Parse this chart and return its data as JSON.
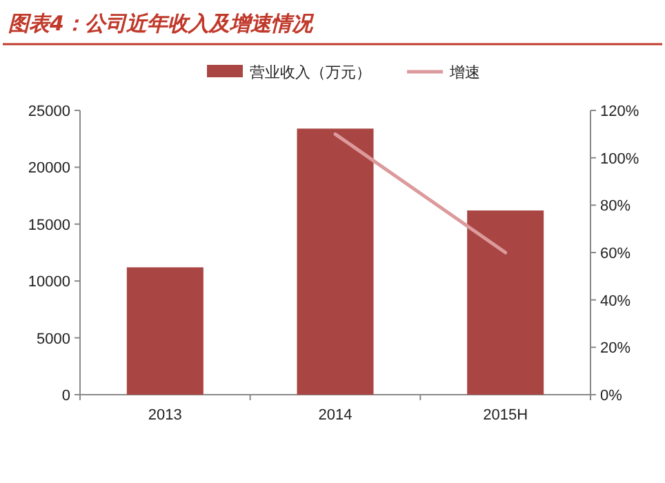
{
  "chart_data": {
    "type": "bar",
    "title": "图表4：公司近年收入及增速情况",
    "categories": [
      "2013",
      "2014",
      "2015H"
    ],
    "series": [
      {
        "name": "营业收入（万元）",
        "color": "#a94643",
        "values": [
          11200,
          23400,
          16200
        ]
      },
      {
        "name": "增速",
        "type": "line",
        "axis": "y2",
        "color": "#dc9a9c",
        "values": [
          null,
          110,
          60
        ]
      }
    ],
    "ylim": [
      0,
      25000
    ],
    "yticks": [
      0,
      5000,
      10000,
      15000,
      20000,
      25000
    ],
    "y2lim": [
      0,
      120
    ],
    "y2ticks": [
      {
        "value": 0,
        "label": "0%"
      },
      {
        "value": 20,
        "label": "20%"
      },
      {
        "value": 40,
        "label": "40%"
      },
      {
        "value": 60,
        "label": "60%"
      },
      {
        "value": 80,
        "label": "80%"
      },
      {
        "value": 100,
        "label": "100%"
      },
      {
        "value": 120,
        "label": "120%"
      }
    ],
    "legend": "top"
  }
}
